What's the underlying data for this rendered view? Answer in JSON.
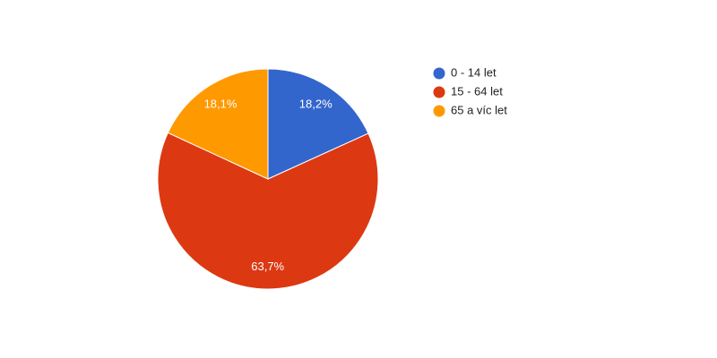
{
  "chart_data": {
    "type": "pie",
    "categories": [
      "0 - 14 let",
      "15 - 64 let",
      "65 a víc let"
    ],
    "values": [
      18.2,
      63.7,
      18.1
    ],
    "value_labels": [
      "18,2%",
      "63,7%",
      "18,1%"
    ],
    "colors": [
      "#3366cc",
      "#dc3912",
      "#ff9900"
    ],
    "legend": "right"
  }
}
